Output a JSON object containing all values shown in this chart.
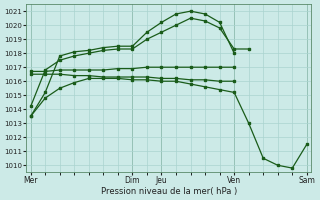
{
  "background_color": "#cceae7",
  "grid_color": "#aad4d0",
  "line_color": "#1a5c1a",
  "xlabel": "Pression niveau de la mer( hPa )",
  "ylim": [
    1009.5,
    1021.5
  ],
  "yticks": [
    1010,
    1011,
    1012,
    1013,
    1014,
    1015,
    1016,
    1017,
    1018,
    1019,
    1020,
    1021
  ],
  "day_labels": [
    "Mer",
    "Dim",
    "Jeu",
    "Ven",
    "Sam"
  ],
  "day_positions": [
    0,
    7,
    9,
    14,
    19
  ],
  "figsize": [
    3.2,
    2.0
  ],
  "dpi": 100,
  "series": [
    {
      "name": "line_main_peak",
      "x": [
        0,
        1,
        2,
        3,
        4,
        5,
        6,
        7,
        8,
        9,
        10,
        11,
        12,
        13,
        14
      ],
      "y": [
        1013.5,
        1015.2,
        1017.8,
        1018.1,
        1018.2,
        1018.4,
        1018.5,
        1018.5,
        1019.5,
        1020.2,
        1020.8,
        1021.0,
        1020.8,
        1020.2,
        1018.0
      ]
    },
    {
      "name": "line_second_peak",
      "x": [
        0,
        1,
        2,
        3,
        4,
        5,
        6,
        7,
        8,
        9,
        10,
        11,
        12,
        13,
        14,
        15
      ],
      "y": [
        1014.2,
        1016.8,
        1017.5,
        1017.8,
        1018.0,
        1018.2,
        1018.3,
        1018.3,
        1019.0,
        1019.5,
        1020.0,
        1020.5,
        1020.3,
        1019.8,
        1018.3,
        1018.3
      ]
    },
    {
      "name": "line_flat_high",
      "x": [
        0,
        1,
        2,
        3,
        4,
        5,
        6,
        7,
        8,
        9,
        10,
        11,
        12,
        13,
        14
      ],
      "y": [
        1016.7,
        1016.7,
        1016.8,
        1016.8,
        1016.8,
        1016.8,
        1016.9,
        1016.9,
        1017.0,
        1017.0,
        1017.0,
        1017.0,
        1017.0,
        1017.0,
        1017.0
      ]
    },
    {
      "name": "line_flat_mid",
      "x": [
        0,
        1,
        2,
        3,
        4,
        5,
        6,
        7,
        8,
        9,
        10,
        11,
        12,
        13,
        14
      ],
      "y": [
        1016.5,
        1016.5,
        1016.5,
        1016.4,
        1016.4,
        1016.3,
        1016.3,
        1016.3,
        1016.3,
        1016.2,
        1016.2,
        1016.1,
        1016.1,
        1016.0,
        1016.0
      ]
    },
    {
      "name": "line_bottom_curve",
      "x": [
        0,
        1,
        2,
        3,
        4,
        5,
        6,
        7,
        8,
        9,
        10,
        11,
        12,
        13,
        14,
        15,
        16,
        17,
        18,
        19
      ],
      "y": [
        1013.5,
        1014.8,
        1015.5,
        1015.9,
        1016.2,
        1016.2,
        1016.2,
        1016.1,
        1016.1,
        1016.0,
        1016.0,
        1015.8,
        1015.6,
        1015.4,
        1015.2,
        1013.0,
        1010.5,
        1010.0,
        1009.8,
        1011.5
      ]
    }
  ],
  "vline_positions": [
    0,
    7,
    9,
    14,
    19
  ],
  "vline_color": "#5a8a6a"
}
